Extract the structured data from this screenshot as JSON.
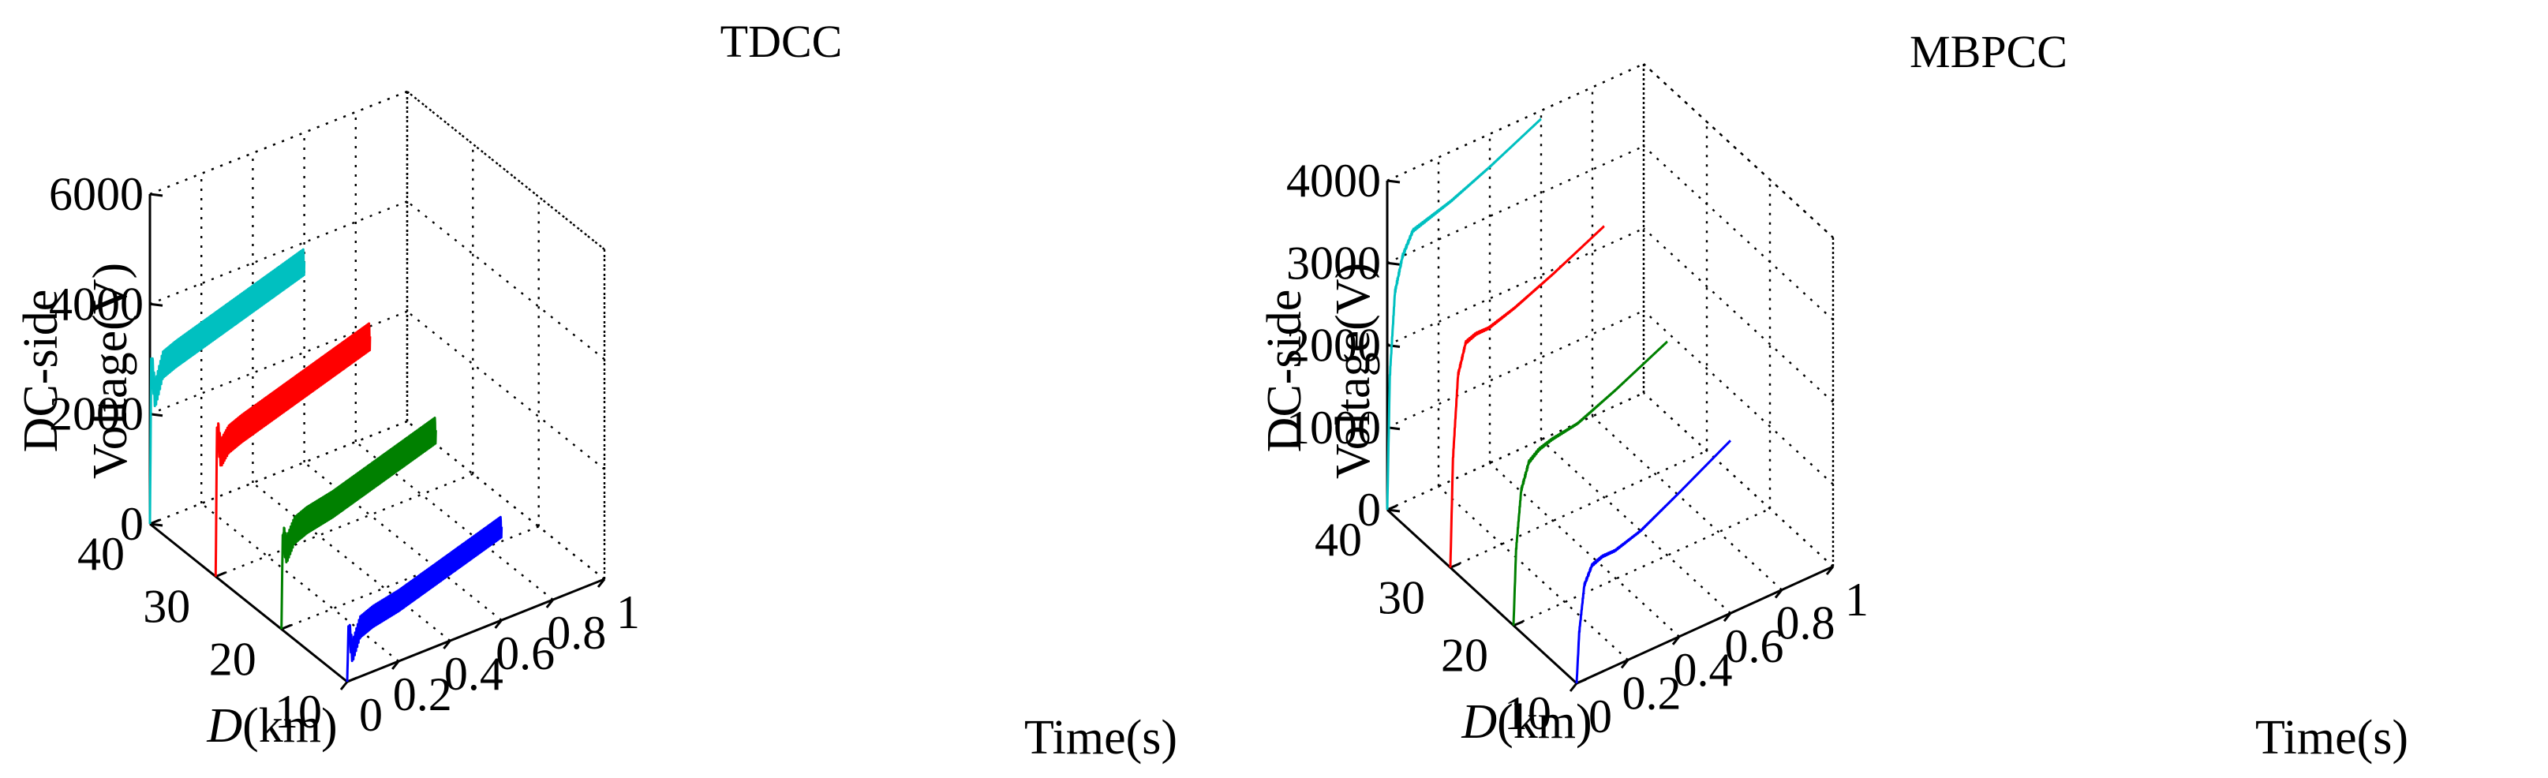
{
  "chart_data": [
    {
      "type": "line3d",
      "title": "TDCC",
      "zlabel_lines": [
        "DC-side",
        "Voltage(V)"
      ],
      "ylabel_prefix": "D",
      "ylabel_suffix": "(km)",
      "xlabel": "Time(s)",
      "xlim": [
        0,
        1
      ],
      "ylim": [
        10,
        40
      ],
      "zlim": [
        0,
        6000
      ],
      "x_ticks": [
        0,
        0.2,
        0.4,
        0.6,
        0.8,
        1
      ],
      "x_tick_labels": [
        "0",
        "0.2",
        "0.4",
        "0.6",
        "0.8",
        "1"
      ],
      "y_ticks": [
        40,
        30,
        20,
        10
      ],
      "y_tick_labels": [
        "40",
        "30",
        "20",
        "10"
      ],
      "z_ticks": [
        0,
        2000,
        4000,
        6000
      ],
      "z_tick_labels": [
        "0",
        "2000",
        "4000",
        "6000"
      ],
      "series": [
        {
          "name": "D=40km",
          "distance_km": 40,
          "color": "#00c0c0",
          "time_s": [
            0,
            0.005,
            0.02,
            0.05,
            0.1,
            0.2,
            0.3,
            0.4,
            0.5,
            0.6
          ],
          "voltage_v": [
            0,
            3000,
            2300,
            2800,
            2900,
            3050,
            3200,
            3350,
            3500,
            3650
          ],
          "ripple_v": 500,
          "ripple_cycles": 60
        },
        {
          "name": "D=30km",
          "distance_km": 30,
          "color": "#ff0000",
          "time_s": [
            0,
            0.005,
            0.02,
            0.05,
            0.1,
            0.2,
            0.3,
            0.4,
            0.5,
            0.6
          ],
          "voltage_v": [
            0,
            2700,
            2200,
            2400,
            2500,
            2650,
            2800,
            2950,
            3100,
            3250
          ],
          "ripple_v": 520,
          "ripple_cycles": 60
        },
        {
          "name": "D=20km",
          "distance_km": 20,
          "color": "#008000",
          "time_s": [
            0,
            0.005,
            0.02,
            0.05,
            0.1,
            0.2,
            0.3,
            0.4,
            0.5,
            0.6
          ],
          "voltage_v": [
            0,
            1700,
            1400,
            1700,
            1800,
            1900,
            2050,
            2200,
            2350,
            2500
          ],
          "ripple_v": 500,
          "ripple_cycles": 60
        },
        {
          "name": "D=10km",
          "distance_km": 10,
          "color": "#0000ff",
          "time_s": [
            0,
            0.005,
            0.02,
            0.05,
            0.1,
            0.2,
            0.3,
            0.4,
            0.5,
            0.6
          ],
          "voltage_v": [
            0,
            1000,
            500,
            900,
            1000,
            1100,
            1250,
            1400,
            1550,
            1700
          ],
          "ripple_v": 400,
          "ripple_cycles": 60
        }
      ]
    },
    {
      "type": "line3d",
      "title": "MBPCC",
      "zlabel_lines": [
        "DC-side",
        "Voltage(V)"
      ],
      "ylabel_prefix": "D",
      "ylabel_suffix": "(km)",
      "xlabel": "Time(s)",
      "xlim": [
        0,
        1
      ],
      "ylim": [
        10,
        40
      ],
      "zlim": [
        0,
        4000
      ],
      "x_ticks": [
        0,
        0.2,
        0.4,
        0.6,
        0.8,
        1
      ],
      "x_tick_labels": [
        "0",
        "0.2",
        "0.4",
        "0.6",
        "0.8",
        "1"
      ],
      "y_ticks": [
        40,
        30,
        20,
        10
      ],
      "y_tick_labels": [
        "40",
        "30",
        "20",
        "10"
      ],
      "z_ticks": [
        0,
        1000,
        2000,
        3000,
        4000
      ],
      "z_tick_labels": [
        "0",
        "1000",
        "2000",
        "3000",
        "4000"
      ],
      "series": [
        {
          "name": "D=40km",
          "distance_km": 40,
          "color": "#00c0c0",
          "time_s": [
            0,
            0.01,
            0.03,
            0.06,
            0.1,
            0.15,
            0.25,
            0.4,
            0.6
          ],
          "voltage_v": [
            0,
            1600,
            2600,
            3000,
            3250,
            3300,
            3400,
            3600,
            3900
          ],
          "ripple_v": 60,
          "ripple_cycles": 0
        },
        {
          "name": "D=30km",
          "distance_km": 30,
          "color": "#ff0000",
          "time_s": [
            0,
            0.01,
            0.03,
            0.06,
            0.1,
            0.15,
            0.25,
            0.4,
            0.6
          ],
          "voltage_v": [
            0,
            1300,
            2300,
            2650,
            2700,
            2700,
            2800,
            3000,
            3300
          ],
          "ripple_v": 50,
          "ripple_cycles": 0
        },
        {
          "name": "D=20km",
          "distance_km": 20,
          "color": "#008000",
          "time_s": [
            0,
            0.01,
            0.03,
            0.06,
            0.1,
            0.15,
            0.25,
            0.4,
            0.6
          ],
          "voltage_v": [
            0,
            900,
            1600,
            1900,
            2000,
            2050,
            2100,
            2300,
            2600
          ],
          "ripple_v": 50,
          "ripple_cycles": 0
        },
        {
          "name": "D=10km",
          "distance_km": 10,
          "color": "#0000ff",
          "time_s": [
            0,
            0.01,
            0.03,
            0.06,
            0.1,
            0.15,
            0.25,
            0.4,
            0.6
          ],
          "voltage_v": [
            0,
            600,
            1150,
            1350,
            1400,
            1400,
            1500,
            1750,
            2100
          ],
          "ripple_v": 40,
          "ripple_cycles": 0
        }
      ]
    }
  ]
}
